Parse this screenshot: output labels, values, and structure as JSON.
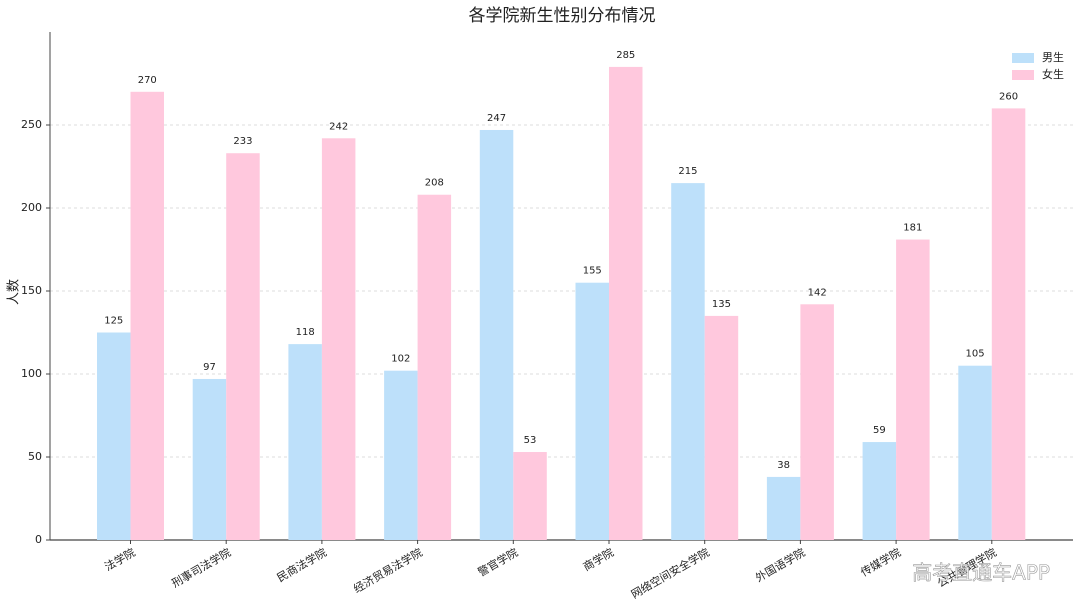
{
  "chart_data": {
    "type": "bar",
    "title": "各学院新生性别分布情况",
    "y_label": "人数",
    "categories": [
      "法学院",
      "刑事司法学院",
      "民商法学院",
      "经济贸易法学院",
      "警官学院",
      "商学院",
      "网络空间安全学院",
      "外国语学院",
      "传媒学院",
      "公共管理学院"
    ],
    "series": [
      {
        "name": "男生",
        "color": "#bde0fa",
        "values": [
          125,
          97,
          118,
          102,
          247,
          155,
          215,
          38,
          59,
          105
        ]
      },
      {
        "name": "女生",
        "color": "#ffc8dd",
        "values": [
          270,
          233,
          242,
          208,
          53,
          285,
          135,
          142,
          181,
          260
        ]
      }
    ],
    "ylim": [
      0,
      300
    ],
    "yticks": [
      0,
      50,
      100,
      150,
      200,
      250
    ],
    "grid": true,
    "legend": "upper right",
    "watermark": "高考直通车APP"
  }
}
